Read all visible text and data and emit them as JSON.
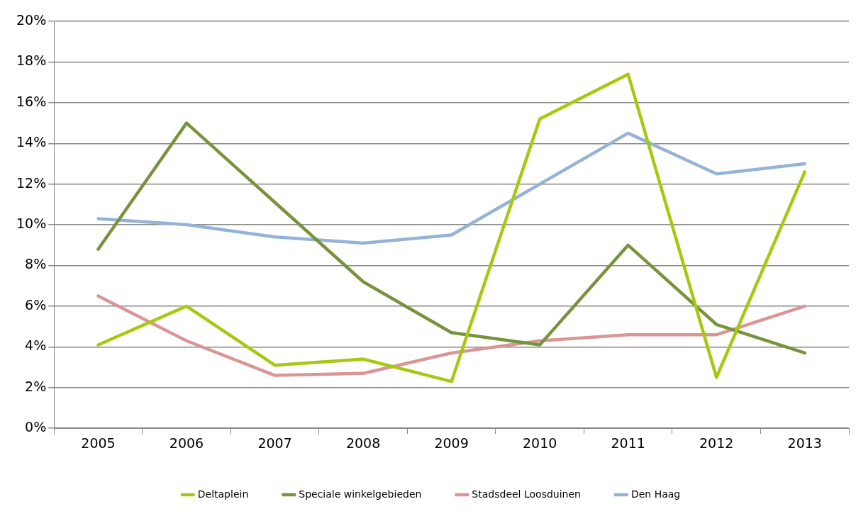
{
  "chart_data": {
    "type": "line",
    "categories": [
      "2005",
      "2006",
      "2007",
      "2008",
      "2009",
      "2010",
      "2011",
      "2012",
      "2013"
    ],
    "series": [
      {
        "name": "Deltaplein",
        "color": "#a6c90f",
        "values": [
          4.1,
          6.0,
          3.1,
          3.4,
          2.3,
          15.2,
          17.4,
          2.5,
          12.6
        ]
      },
      {
        "name": "Speciale winkelgebieden",
        "color": "#77933c",
        "values": [
          8.8,
          15.0,
          11.1,
          7.2,
          4.7,
          4.1,
          9.0,
          5.1,
          3.7
        ]
      },
      {
        "name": "Stadsdeel Loosduinen",
        "color": "#d99694",
        "values": [
          6.5,
          4.3,
          2.6,
          2.7,
          3.7,
          4.3,
          4.6,
          4.6,
          6.0
        ]
      },
      {
        "name": "Den Haag",
        "color": "#95b3d7",
        "values": [
          10.3,
          10.0,
          9.4,
          9.1,
          9.5,
          12.0,
          14.5,
          12.5,
          13.0
        ]
      }
    ],
    "ylim": [
      0,
      20
    ],
    "yticks": [
      {
        "value": 0,
        "label": "0%"
      },
      {
        "value": 2,
        "label": "2%"
      },
      {
        "value": 4,
        "label": "4%"
      },
      {
        "value": 6,
        "label": "6%"
      },
      {
        "value": 8,
        "label": "8%"
      },
      {
        "value": 10,
        "label": "10%"
      },
      {
        "value": 12,
        "label": "12%"
      },
      {
        "value": 14,
        "label": "14%"
      },
      {
        "value": 16,
        "label": "16%"
      },
      {
        "value": 18,
        "label": "18%"
      },
      {
        "value": 20,
        "label": "20%"
      }
    ],
    "grid": "y",
    "legend": "bottom",
    "marker": "none",
    "line_style": "solid"
  }
}
